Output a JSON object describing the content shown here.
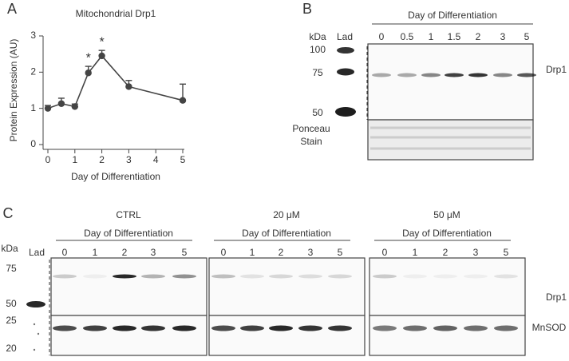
{
  "chart_data": {
    "type": "line",
    "panel_label": "A",
    "title": "Mitochondrial Drp1",
    "x_label": "Day of Differentiation",
    "y_label": "Protein Expression (AU)",
    "x": [
      0,
      0.5,
      1,
      1.5,
      2,
      3,
      5
    ],
    "values": [
      1.0,
      1.13,
      1.05,
      1.98,
      2.45,
      1.6,
      1.22
    ],
    "errors": [
      0.08,
      0.15,
      0.07,
      0.18,
      0.15,
      0.17,
      0.45
    ],
    "color": "#444444",
    "xlim": [
      0,
      5
    ],
    "xticks": [
      0,
      1,
      2,
      3,
      4,
      5
    ],
    "ylim": [
      0,
      3
    ],
    "yticks": [
      0,
      1,
      2,
      3
    ],
    "annotations": [
      {
        "text": "*",
        "x": 1.5
      },
      {
        "text": "*",
        "x": 2
      }
    ]
  },
  "panel_b": {
    "label": "B",
    "header": "Day of Differentiation",
    "lanes": [
      "0",
      "0.5",
      "1",
      "1.5",
      "2",
      "3",
      "5"
    ],
    "kda_label": "kDa",
    "ladder_label": "Lad",
    "markers": [
      "100",
      "75",
      "50"
    ],
    "target": "Drp1",
    "loading": [
      "Ponceau",
      "Stain"
    ]
  },
  "panel_c": {
    "label": "C",
    "kda_label": "kDa",
    "ladder_label": "Lad",
    "markers": [
      "75",
      "50",
      "25",
      "20"
    ],
    "groups": [
      {
        "title": "CTRL",
        "header": "Day of Differentiation",
        "lanes": [
          "0",
          "1",
          "2",
          "3",
          "5"
        ]
      },
      {
        "title": "20 μM",
        "header": "Day of Differentiation",
        "lanes": [
          "0",
          "1",
          "2",
          "3",
          "5"
        ]
      },
      {
        "title": "50 μM",
        "header": "Day of Differentiation",
        "lanes": [
          "0",
          "1",
          "2",
          "3",
          "5"
        ]
      }
    ],
    "targets": [
      "Drp1",
      "MnSOD"
    ]
  }
}
